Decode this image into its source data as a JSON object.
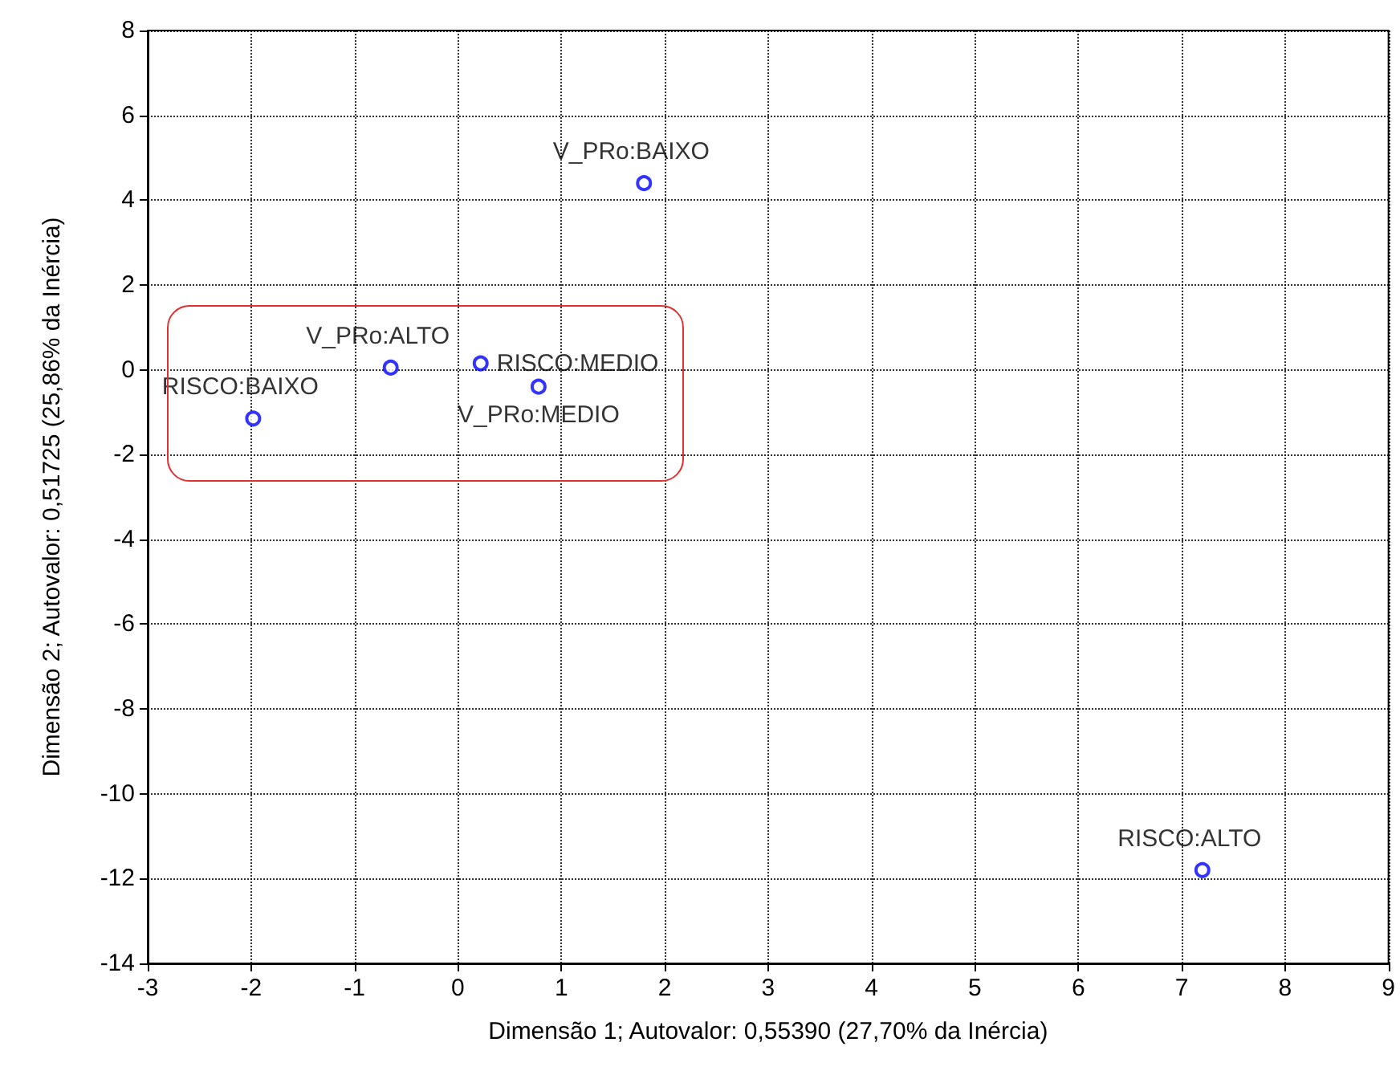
{
  "chart_data": {
    "type": "scatter",
    "xlabel": "Dimensão 1; Autovalor: 0,55390 (27,70% da Inércia)",
    "ylabel": "Dimensão 2; Autovalor: 0,51725 (25,86% da Inércia)",
    "series": [
      {
        "name": "V_PRo:BAIXO",
        "color": "#0000ff",
        "x": [
          1.8
        ],
        "values": [
          4.4
        ]
      },
      {
        "name": "V_PRo:ALTO",
        "color": "#0000ff",
        "x": [
          -0.65
        ],
        "values": [
          0.05
        ]
      },
      {
        "name": "RISCO:MEDIO",
        "color": "#0000ff",
        "x": [
          0.22
        ],
        "values": [
          0.15
        ]
      },
      {
        "name": "V_PRo:MEDIO",
        "color": "#0000ff",
        "x": [
          0.78
        ],
        "values": [
          -0.4
        ]
      },
      {
        "name": "RISCO:BAIXO",
        "color": "#0000ff",
        "x": [
          -1.98
        ],
        "values": [
          -1.15
        ]
      },
      {
        "name": "RISCO:ALTO",
        "color": "#0000ff",
        "x": [
          7.2
        ],
        "values": [
          -11.8
        ]
      }
    ],
    "xlim": [
      -3,
      9
    ],
    "xticks": [
      -3,
      -2,
      -1,
      0,
      1,
      2,
      3,
      4,
      5,
      6,
      7,
      8,
      9
    ],
    "ylim": [
      -14,
      8
    ],
    "yticks": [
      -14,
      -12,
      -10,
      -8,
      -6,
      -4,
      -2,
      0,
      2,
      4,
      6,
      8
    ],
    "grid": true,
    "legend": false,
    "marker": "circle"
  }
}
